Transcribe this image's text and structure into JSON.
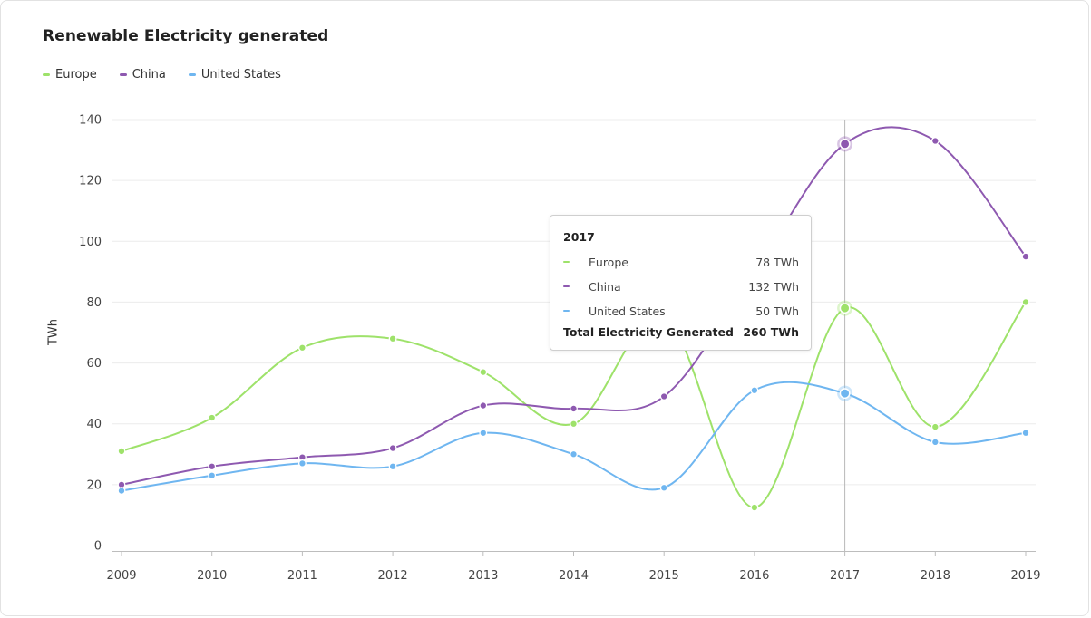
{
  "title": "Renewable Electricity generated",
  "ylabel": "TWh",
  "colors": {
    "europe": "#9ee26a",
    "china": "#8e59b0",
    "us": "#6fb6f0"
  },
  "chart_data": {
    "type": "line",
    "title": "Renewable Electricity generated",
    "xlabel": "",
    "ylabel": "TWh",
    "categories": [
      "2009",
      "2010",
      "2011",
      "2012",
      "2013",
      "2014",
      "2015",
      "2016",
      "2017",
      "2018",
      "2019"
    ],
    "ylim": [
      0,
      140
    ],
    "yticks": [
      "0",
      "20",
      "40",
      "60",
      "80",
      "100",
      "120",
      "140"
    ],
    "grid": true,
    "legend_position": "top-left",
    "series": [
      {
        "name": "Europe",
        "color": "#9ee26a",
        "values": [
          31,
          42,
          65,
          68,
          57,
          40,
          75,
          12.5,
          78,
          39,
          80
        ]
      },
      {
        "name": "China",
        "color": "#8e59b0",
        "values": [
          20,
          26,
          29,
          32,
          46,
          45,
          49,
          90,
          132,
          133,
          95
        ]
      },
      {
        "name": "United States",
        "color": "#6fb6f0",
        "values": [
          18,
          23,
          27,
          26,
          37,
          30,
          19,
          51,
          50,
          34,
          37
        ]
      }
    ],
    "highlight": "2017"
  },
  "tooltip": {
    "year": "2017",
    "rows": [
      {
        "name": "Europe",
        "value": "78 TWh",
        "color": "#9ee26a"
      },
      {
        "name": "China",
        "value": "132 TWh",
        "color": "#8e59b0"
      },
      {
        "name": "United States",
        "value": "50 TWh",
        "color": "#6fb6f0"
      }
    ],
    "total_label": "Total Electricity Generated",
    "total_value": "260 TWh"
  }
}
